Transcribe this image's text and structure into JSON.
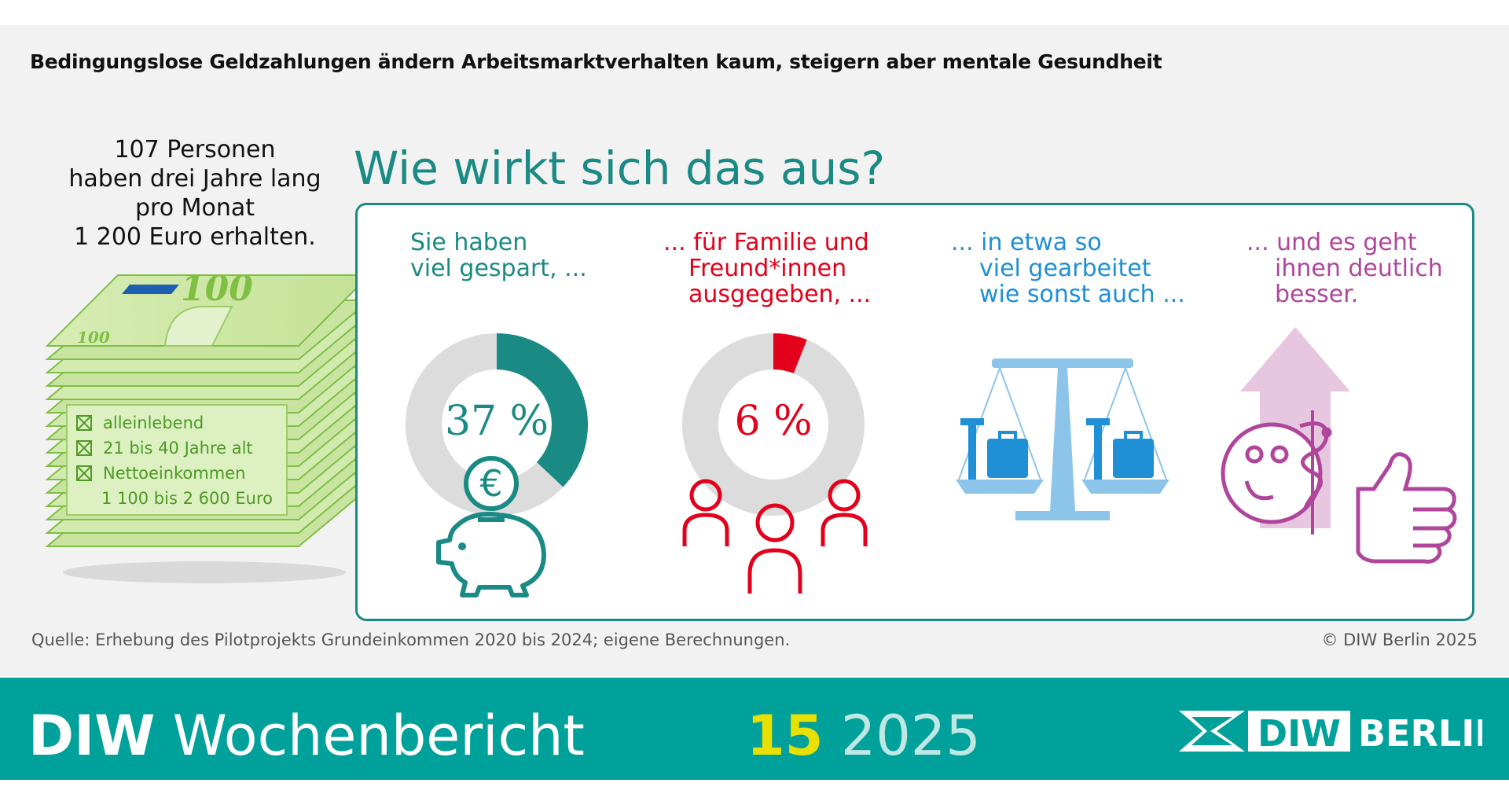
{
  "headline": "Bedingungslose Geldzahlungen ändern Arbeitsmarktverhalten kaum, steigern aber mentale Gesundheit",
  "intro_lines": [
    "107 Personen",
    "haben drei Jahre lang",
    "pro Monat",
    "1 200 Euro erhalten."
  ],
  "question": "Wie wirkt sich das aus?",
  "banknote": {
    "value": "100",
    "small_value": "100"
  },
  "criteria": [
    "alleinlebend",
    "21 bis 40 Jahre alt",
    "Nettoeinkommen",
    "1 100 bis 2 600 Euro"
  ],
  "columns": [
    {
      "lines": [
        "Sie haben",
        "viel gespart, ..."
      ],
      "percent_label": "37 %",
      "share": 0.37,
      "color": "#1a8a84",
      "icon": "piggy-bank-icon"
    },
    {
      "lines": [
        "... für Familie und",
        "Freund*innen",
        "ausgegeben, ..."
      ],
      "percent_label": "6 %",
      "share": 0.06,
      "color": "#e2001a",
      "icon": "people-icon"
    },
    {
      "lines": [
        "... in etwa so",
        "viel gearbeitet",
        "wie sonst auch ..."
      ],
      "color": "#1f8fd6",
      "icon": "scale-icon"
    },
    {
      "lines": [
        "... und es geht",
        "ihnen deutlich",
        "besser."
      ],
      "color": "#b0469c",
      "icon": "wellbeing-icon"
    }
  ],
  "source": "Quelle: Erhebung des Pilotprojekts Grundeinkommen 2020 bis 2024; eigene Berechnungen.",
  "copyright": "© DIW Berlin 2025",
  "footer": {
    "brand_bold": "DIW",
    "brand_rest": " Wochenbericht",
    "issue_number": "15",
    "issue_year": "2025",
    "logo_diw": "DIW",
    "logo_berlin": "BERLIN"
  },
  "colors": {
    "teal": "#1a8a84",
    "red": "#e2001a",
    "blue": "#1f8fd6",
    "purple": "#b0469c",
    "green": "#4d9a24",
    "footer": "#00a19a"
  }
}
